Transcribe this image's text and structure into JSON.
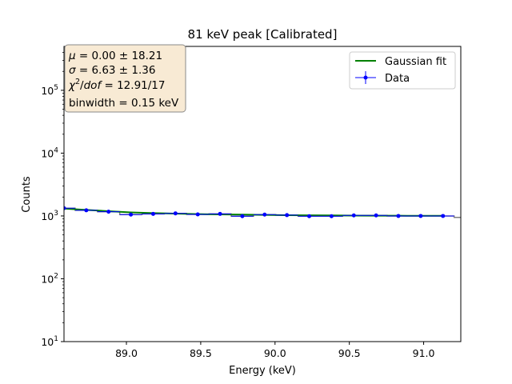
{
  "chart_data": {
    "type": "line",
    "title": "81 keV peak [Calibrated]",
    "xlabel": "Energy (keV)",
    "ylabel": "Counts",
    "xlim": [
      88.58,
      91.25
    ],
    "ylim": [
      10,
      500000
    ],
    "yscale": "log",
    "xticks": [
      "89.0",
      "89.5",
      "90.0",
      "90.5",
      "91.0"
    ],
    "xtick_values": [
      89.0,
      89.5,
      90.0,
      90.5,
      91.0
    ],
    "yticks": [
      {
        "value": 10,
        "base": "10",
        "exp": "1"
      },
      {
        "value": 100,
        "base": "10",
        "exp": "2"
      },
      {
        "value": 1000,
        "base": "10",
        "exp": "3"
      },
      {
        "value": 10000,
        "base": "10",
        "exp": "4"
      },
      {
        "value": 100000,
        "base": "10",
        "exp": "5"
      }
    ],
    "grid": false,
    "legend_position": "top-right",
    "stats_box": {
      "mu_line": {
        "sym": "μ",
        "rest": " = 0.00 ± 18.21"
      },
      "sigma_line": {
        "sym": "σ",
        "rest": " = 6.63 ± 1.36"
      },
      "chi_line": {
        "sym": "χ",
        "sup": "2",
        "mid": "/",
        "dof": "dof",
        "rest": " = 12.91/17"
      },
      "binwidth_line": "binwidth = 0.15 keV"
    },
    "series": [
      {
        "name": "Data",
        "kind": "errorbar-points",
        "color": "#0000ff",
        "x": [
          88.58,
          88.73,
          88.88,
          89.03,
          89.18,
          89.33,
          89.48,
          89.63,
          89.78,
          89.93,
          90.08,
          90.23,
          90.38,
          90.53,
          90.68,
          90.83,
          90.98,
          91.13
        ],
        "y": [
          1330,
          1230,
          1170,
          1050,
          1080,
          1100,
          1060,
          1080,
          990,
          1050,
          1030,
          990,
          990,
          1020,
          1020,
          1000,
          1000,
          1000
        ]
      },
      {
        "name": "Gaussian fit",
        "kind": "line",
        "color": "#008000",
        "x": [
          88.58,
          88.73,
          88.88,
          89.03,
          89.18,
          89.33,
          89.48,
          89.63,
          89.78,
          89.93,
          90.08,
          90.23,
          90.38,
          90.53,
          90.68,
          90.83,
          90.98,
          91.13
        ],
        "y": [
          1310,
          1250,
          1190,
          1140,
          1110,
          1090,
          1070,
          1060,
          1050,
          1040,
          1030,
          1025,
          1020,
          1015,
          1010,
          1008,
          1006,
          1005
        ]
      },
      {
        "kind": "step-histogram",
        "color": "#808080",
        "edges": [
          88.505,
          88.655,
          88.805,
          88.955,
          89.105,
          89.255,
          89.405,
          89.555,
          89.705,
          89.855,
          90.005,
          90.155,
          90.305,
          90.455,
          90.605,
          90.755,
          90.905,
          91.055,
          91.205,
          91.25
        ],
        "y": [
          1330,
          1230,
          1170,
          1050,
          1080,
          1100,
          1060,
          1080,
          990,
          1050,
          1030,
          990,
          990,
          1020,
          1020,
          1000,
          1000,
          1000,
          950
        ]
      }
    ]
  }
}
